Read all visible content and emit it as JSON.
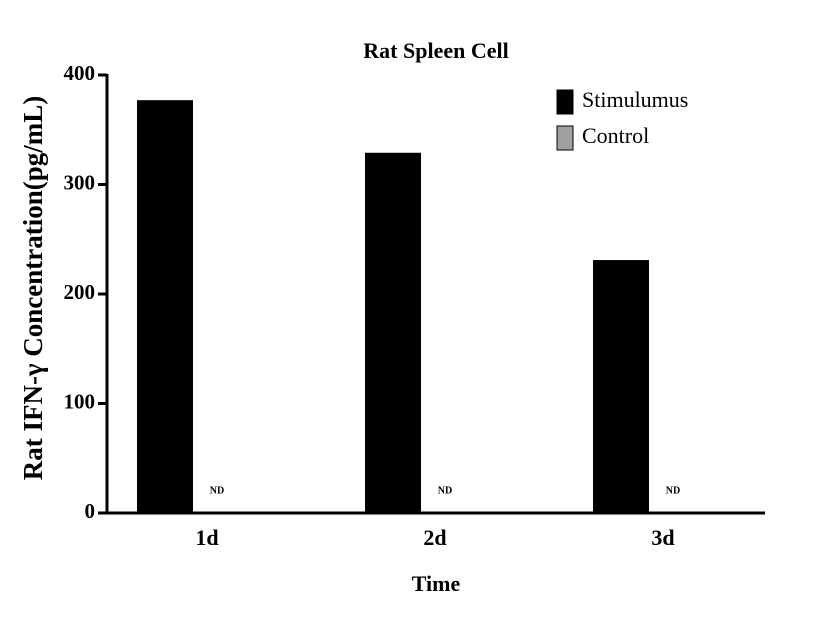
{
  "chart_data": {
    "type": "bar",
    "title": "Rat Spleen Cell",
    "x_label": "Time",
    "y_label": "Rat IFN-γ Concentration(pg/mL)",
    "categories": [
      "1d",
      "2d",
      "3d"
    ],
    "series": [
      {
        "name": "Stimulumus",
        "color": "#000000",
        "values": [
          377,
          329,
          231
        ]
      },
      {
        "name": "Control",
        "color": "#a0a0a0",
        "values": [
          null,
          null,
          null
        ],
        "value_labels": [
          "ND",
          "ND",
          "ND"
        ]
      }
    ],
    "ylim": [
      0,
      400
    ],
    "yticks": [
      0,
      100,
      200,
      300,
      400
    ],
    "legend": "upper right"
  }
}
